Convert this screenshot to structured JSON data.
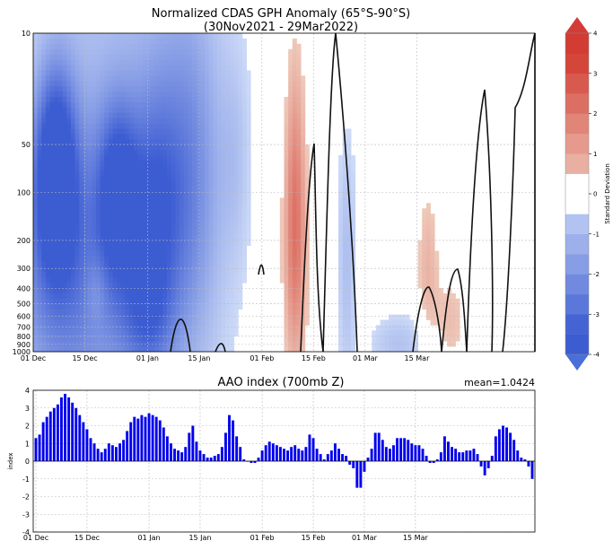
{
  "chart_data": [
    {
      "type": "heatmap",
      "title": "Normalized CDAS GPH Anomaly (65°S-90°S)",
      "subtitle": "(30Nov2021 - 29Mar2022)",
      "xlabel": "",
      "ylabel": "",
      "yscale": "log",
      "ylim": [
        1000,
        10
      ],
      "y_ticks": [
        10,
        50,
        100,
        200,
        300,
        400,
        500,
        600,
        700,
        800,
        900,
        1000
      ],
      "x_tick_labels": [
        "01 Dec",
        "15 Dec",
        "01 Jan",
        "15 Jan",
        "01 Feb",
        "15 Feb",
        "01 Mar",
        "15 Mar"
      ],
      "x_tick_days": [
        1,
        15,
        32,
        46,
        63,
        77,
        91,
        105
      ],
      "colorbar": {
        "label": "Standard Deviation",
        "ticks": [
          -4,
          -3,
          -2,
          -1,
          0,
          1,
          2,
          3,
          4
        ],
        "negative_color": "#4a6fd8",
        "positive_color": "#d33c36"
      },
      "blobs": [
        {
          "day": 7,
          "p": 70,
          "dday": 4,
          "dlog": 0.45,
          "v": -3.6
        },
        {
          "day": 9,
          "p": 300,
          "dday": 12,
          "dlog": 0.7,
          "v": -2.2
        },
        {
          "day": 24,
          "p": 100,
          "dday": 4,
          "dlog": 0.4,
          "v": -2.9
        },
        {
          "day": 34,
          "p": 140,
          "dday": 5,
          "dlog": 0.6,
          "v": -2.4
        },
        {
          "day": 44,
          "p": 80,
          "dday": 6,
          "dlog": 0.8,
          "v": -1.9
        },
        {
          "day": 18,
          "p": 420,
          "dday": 2,
          "dlog": 0.15,
          "v": 0.6
        },
        {
          "day": 31,
          "p": 650,
          "dday": 5,
          "dlog": 0.25,
          "v": -1.3
        },
        {
          "day": 56,
          "p": 60,
          "dday": 3,
          "dlog": 0.5,
          "v": -0.7
        },
        {
          "day": 72,
          "p": 230,
          "dday": 2.2,
          "dlog": 0.55,
          "v": 2.3
        },
        {
          "day": 72,
          "p": 40,
          "dday": 1.8,
          "dlog": 0.5,
          "v": 0.9
        },
        {
          "day": 86,
          "p": 250,
          "dday": 2,
          "dlog": 0.6,
          "v": -1.2
        },
        {
          "day": 108,
          "p": 300,
          "dday": 2,
          "dlog": 0.35,
          "v": 1.0
        },
        {
          "day": 114,
          "p": 650,
          "dday": 3,
          "dlog": 0.2,
          "v": 0.8
        },
        {
          "day": 100,
          "p": 900,
          "dday": 6,
          "dlog": 0.15,
          "v": -1.1
        }
      ]
    },
    {
      "type": "bar",
      "title": "AAO index (700mb Z)",
      "annotation": "mean=1.0424",
      "xlabel": "",
      "ylabel": "index",
      "ylim": [
        -4,
        4
      ],
      "y_ticks": [
        -4,
        -3,
        -2,
        -1,
        0,
        1,
        2,
        3,
        4
      ],
      "bar_color": "#0000ee",
      "x_tick_labels": [
        "01 Dec",
        "15 Dec",
        "01 Jan",
        "15 Jan",
        "01 Feb",
        "15 Feb",
        "01 Mar",
        "15 Mar"
      ],
      "x_tick_days": [
        1,
        15,
        32,
        46,
        63,
        77,
        91,
        105
      ],
      "values": [
        1.3,
        1.5,
        2.2,
        2.5,
        2.8,
        3.0,
        3.2,
        3.6,
        3.8,
        3.6,
        3.3,
        3.0,
        2.6,
        2.2,
        1.8,
        1.3,
        1.0,
        0.7,
        0.5,
        0.7,
        1.0,
        0.9,
        0.8,
        1.0,
        1.2,
        1.7,
        2.2,
        2.5,
        2.4,
        2.6,
        2.5,
        2.7,
        2.6,
        2.5,
        2.3,
        1.9,
        1.4,
        1.0,
        0.7,
        0.6,
        0.5,
        0.8,
        1.6,
        2.0,
        1.1,
        0.6,
        0.4,
        0.2,
        0.2,
        0.3,
        0.4,
        0.8,
        1.6,
        2.6,
        2.3,
        1.4,
        0.8,
        0.1,
        0.0,
        -0.1,
        -0.1,
        0.2,
        0.6,
        0.9,
        1.1,
        1.0,
        0.9,
        0.8,
        0.7,
        0.6,
        0.8,
        0.9,
        0.7,
        0.6,
        0.8,
        1.5,
        1.3,
        0.7,
        0.4,
        0.1,
        0.4,
        0.6,
        1.0,
        0.7,
        0.4,
        0.3,
        -0.2,
        -0.4,
        -1.5,
        -1.5,
        -0.6,
        0.2,
        0.7,
        1.6,
        1.6,
        1.2,
        0.8,
        0.7,
        0.9,
        1.3,
        1.3,
        1.3,
        1.2,
        1.0,
        0.9,
        0.9,
        0.7,
        0.3,
        -0.1,
        -0.1,
        0.1,
        0.5,
        1.4,
        1.1,
        0.8,
        0.7,
        0.5,
        0.5,
        0.6,
        0.6,
        0.7,
        0.4,
        -0.3,
        -0.8,
        -0.4,
        0.3,
        1.4,
        1.8,
        2.0,
        1.9,
        1.6,
        1.2,
        0.6,
        0.2,
        0.1,
        -0.3,
        -1.0
      ]
    }
  ]
}
